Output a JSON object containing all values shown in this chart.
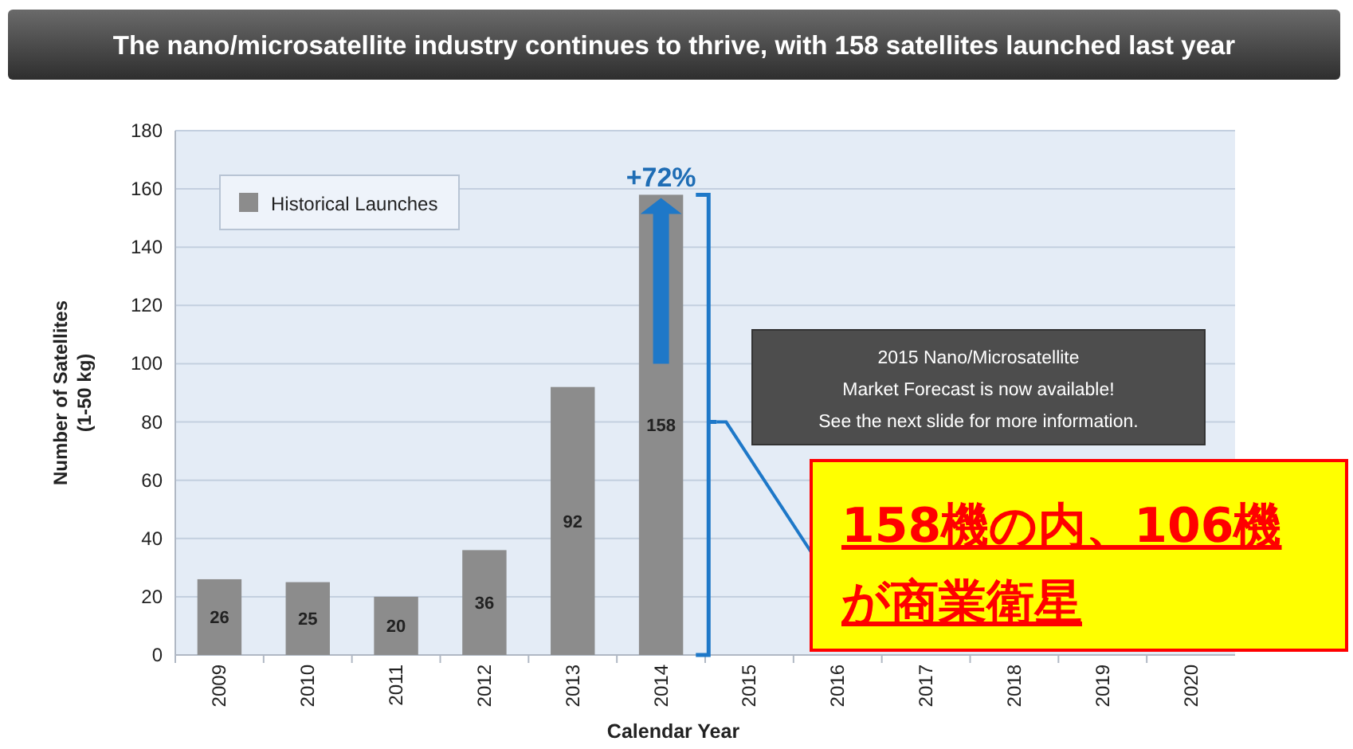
{
  "chart_data": {
    "type": "bar",
    "title": "The nano/microsatellite industry continues to thrive, with 158 satellites launched last year",
    "xlabel": "Calendar Year",
    "ylabel": "Number of Satellites\n(1-50 kg)",
    "categories": [
      "2009",
      "2010",
      "2011",
      "2012",
      "2013",
      "2014",
      "2015",
      "2016",
      "2017",
      "2018",
      "2019",
      "2020"
    ],
    "series": [
      {
        "name": "Historical Launches",
        "color": "#8c8c8c",
        "values": [
          26,
          25,
          20,
          36,
          92,
          158,
          null,
          null,
          null,
          null,
          null,
          null
        ]
      }
    ],
    "ylim": [
      0,
      180
    ],
    "yticks": [
      0,
      20,
      40,
      60,
      80,
      100,
      120,
      140,
      160,
      180
    ],
    "grid": "y",
    "legend": "top left",
    "data_labels": true,
    "annotations": [
      {
        "text": "+72%",
        "x": "2014",
        "y": 158
      },
      "2015 Nano/Microsatellite\nMarket Forecast is now available!\nSee the next slide for more information.",
      "158機の内、106機",
      "が商業衛星"
    ]
  }
}
